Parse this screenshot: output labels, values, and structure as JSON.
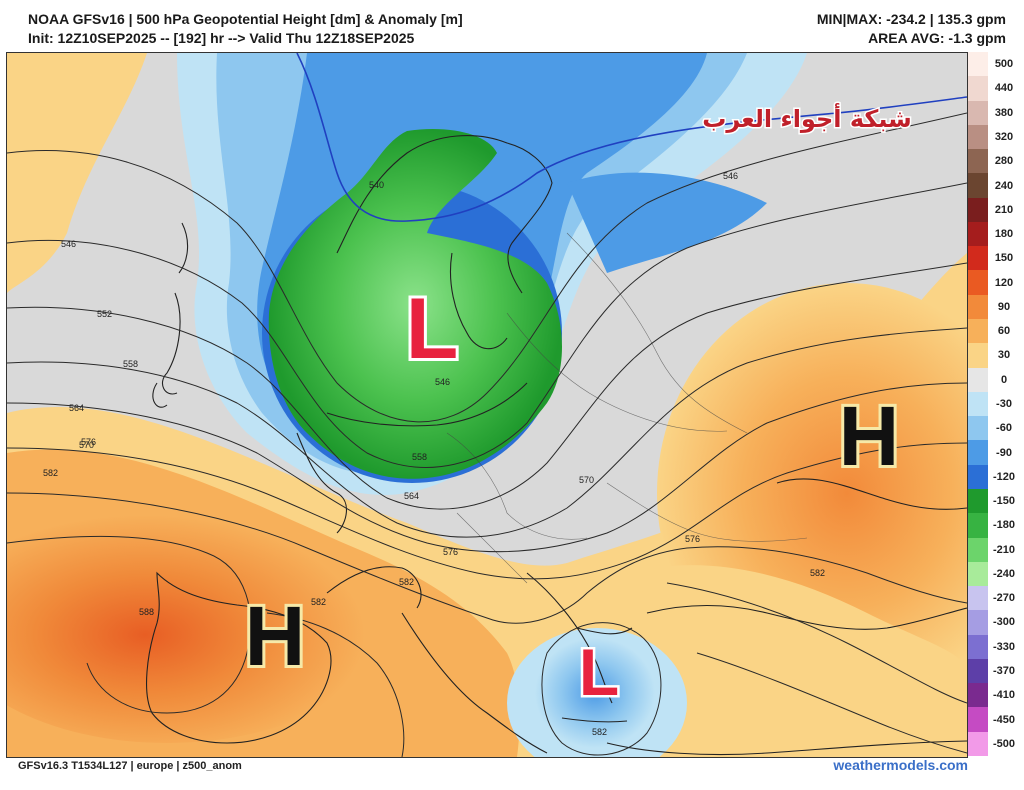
{
  "header": {
    "title": "NOAA GFSv16 |  500 hPa Geopotential Height [dm] & Anomaly [m]",
    "init": "Init: 12Z10SEP2025 -- [192] hr --> Valid Thu 12Z18SEP2025",
    "minmax": "MIN|MAX: -234.2 | 135.3 gpm",
    "area_avg": "AREA AVG: -1.3 gpm"
  },
  "map": {
    "watermark": "شبكة أجواء العرب",
    "pressure_centers": [
      {
        "label": "L",
        "type": "low",
        "where": "north-sea-scandinavia"
      },
      {
        "label": "H",
        "type": "high",
        "where": "iberia"
      },
      {
        "label": "H",
        "type": "high",
        "where": "ukraine-black-sea"
      },
      {
        "label": "L",
        "type": "low",
        "where": "crete"
      }
    ],
    "contour_labels": [
      "546",
      "552",
      "558",
      "564",
      "570",
      "576",
      "582",
      "546",
      "540",
      "558",
      "564",
      "570",
      "576",
      "582",
      "576",
      "582",
      "582",
      "588",
      "546",
      "582"
    ]
  },
  "colorbar": {
    "labels": [
      "500",
      "440",
      "380",
      "320",
      "280",
      "240",
      "210",
      "180",
      "150",
      "120",
      "90",
      "60",
      "30",
      "0",
      "-30",
      "-60",
      "-90",
      "-120",
      "-150",
      "-180",
      "-210",
      "-240",
      "-270",
      "-300",
      "-330",
      "-370",
      "-410",
      "-450",
      "-500"
    ],
    "colors": [
      "#fdeee8",
      "#f0d8d0",
      "#d9b8b0",
      "#b98f83",
      "#8d6552",
      "#6b4530",
      "#7a1e1e",
      "#a51d1d",
      "#d22a1c",
      "#ea5a22",
      "#f28a3a",
      "#f7b05a",
      "#fad486",
      "#e6e6e6",
      "#bfe3f5",
      "#8ec7ef",
      "#4d9be6",
      "#2b6fd6",
      "#1f9a2d",
      "#37b342",
      "#6cd46b",
      "#a8eb9a",
      "#c8c4ef",
      "#a59de3",
      "#7c6fd1",
      "#5d3fa8",
      "#7a2a8f",
      "#c54bc3",
      "#f29ae8"
    ]
  },
  "footer": {
    "left": "GFSv16.3 T1534L127 | europe | z500_anom",
    "right": "weathermodels.com"
  }
}
